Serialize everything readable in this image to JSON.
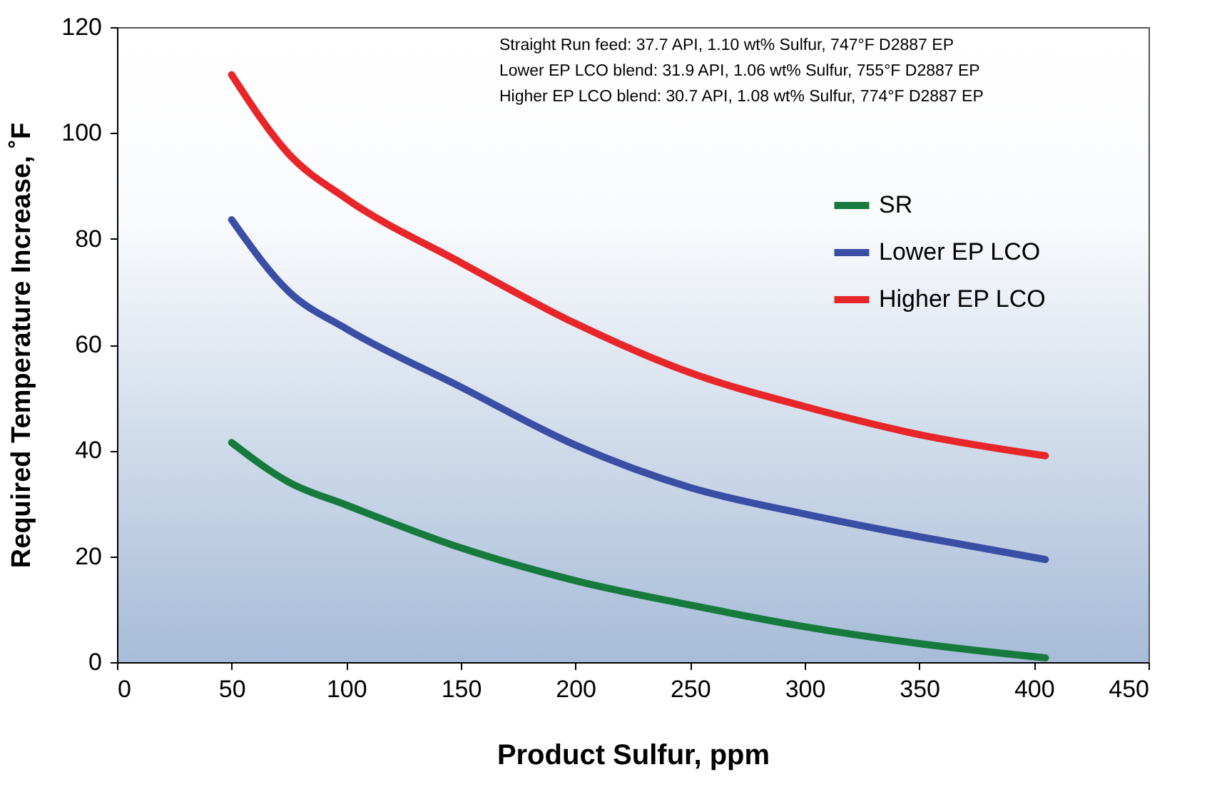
{
  "chart_data": {
    "type": "line",
    "xlabel": "Product Sulfur, ppm",
    "ylabel": "Required Temperature Increase, ˚F",
    "x": [
      50,
      75,
      100,
      150,
      200,
      250,
      300,
      350,
      405
    ],
    "series": [
      {
        "name": "SR",
        "color": "#157a3c",
        "values": [
          41.5,
          34,
          29.7,
          21.6,
          15.4,
          10.8,
          6.7,
          3.5,
          0.8
        ]
      },
      {
        "name": "Lower EP LCO",
        "color": "#3a4ea5",
        "values": [
          83.6,
          70,
          63,
          52,
          41,
          33,
          28,
          23.7,
          19.4
        ]
      },
      {
        "name": "Higher EP LCO",
        "color": "#e8262a",
        "values": [
          111,
          96,
          87.6,
          75.5,
          64,
          54.7,
          48.3,
          43,
          39
        ]
      }
    ],
    "xlim": [
      0,
      450
    ],
    "xticks": [
      0,
      50,
      100,
      150,
      200,
      250,
      300,
      350,
      400,
      450
    ],
    "ylim": [
      0,
      120
    ],
    "yticks": [
      0,
      20,
      40,
      60,
      80,
      100,
      120
    ],
    "grid": false,
    "legend": "top right",
    "marker": "none",
    "line_style": "solid",
    "annotations": [
      "Straight Run feed: 37.7 API, 1.10 wt% Sulfur, 747°F D2887 EP",
      "Lower EP LCO blend: 31.9 API, 1.06 wt% Sulfur, 755°F D2887 EP",
      "Higher EP LCO blend: 30.7 API, 1.08 wt% Sulfur, 774°F D2887 EP"
    ]
  }
}
